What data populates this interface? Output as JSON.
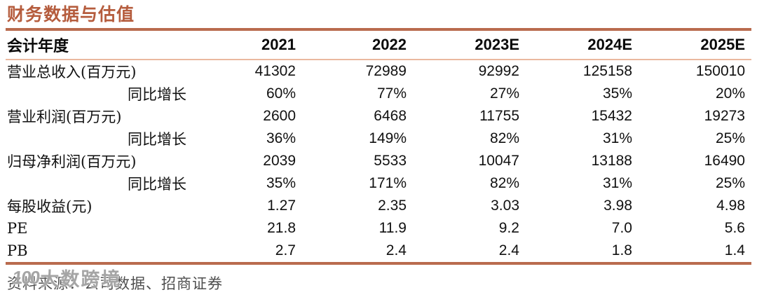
{
  "title": "财务数据与估值",
  "colors": {
    "title": "#b55c3d",
    "rule_thick": "#b96b4e",
    "rule_thin": "#eab89f",
    "body_text": "#111111",
    "footer_text": "#4f4f4f"
  },
  "table": {
    "header": [
      "会计年度",
      "2021",
      "2022",
      "2023E",
      "2024E",
      "2025E"
    ],
    "rows": [
      {
        "label": "营业总收入(百万元)",
        "indent": false,
        "values": [
          "41302",
          "72989",
          "92992",
          "125158",
          "150010"
        ]
      },
      {
        "label": "同比增长",
        "indent": true,
        "values": [
          "60%",
          "77%",
          "27%",
          "35%",
          "20%"
        ]
      },
      {
        "label": "营业利润(百万元)",
        "indent": false,
        "values": [
          "2600",
          "6468",
          "11755",
          "15432",
          "19273"
        ]
      },
      {
        "label": "同比增长",
        "indent": true,
        "values": [
          "36%",
          "149%",
          "82%",
          "31%",
          "25%"
        ]
      },
      {
        "label": "归母净利润(百万元)",
        "indent": false,
        "values": [
          "2039",
          "5533",
          "10047",
          "13188",
          "16490"
        ]
      },
      {
        "label": "同比增长",
        "indent": true,
        "values": [
          "35%",
          "171%",
          "82%",
          "31%",
          "25%"
        ]
      },
      {
        "label": "每股收益(元)",
        "indent": false,
        "values": [
          "1.27",
          "2.35",
          "3.03",
          "3.98",
          "4.98"
        ]
      },
      {
        "label": "PE",
        "indent": false,
        "values": [
          "21.8",
          "11.9",
          "9.2",
          "7.0",
          "5.6"
        ]
      },
      {
        "label": "PB",
        "indent": false,
        "values": [
          "2.7",
          "2.4",
          "2.4",
          "1.8",
          "1.4"
        ]
      }
    ]
  },
  "footer": {
    "source_text": "资料来源：公司数据、招商证券"
  },
  "watermark": {
    "logo": "100",
    "text": "大数跨境"
  }
}
